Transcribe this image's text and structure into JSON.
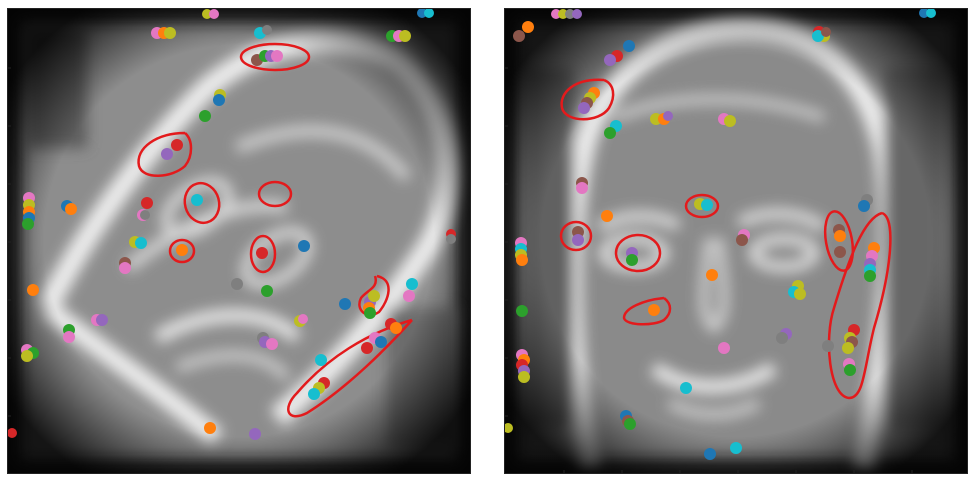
{
  "figure": {
    "panels": [
      {
        "id": "left",
        "subject": "tilted-face-edge-map",
        "point_colors": [
          "#1f77b4",
          "#ff7f0e",
          "#2ca02c",
          "#d62728",
          "#9467bd",
          "#8c564b",
          "#e377c2",
          "#7f7f7f",
          "#bcbd22",
          "#17becf"
        ],
        "annotation_color": "#e31a1c"
      },
      {
        "id": "right",
        "subject": "frontal-face-edge-map",
        "point_colors": [
          "#1f77b4",
          "#ff7f0e",
          "#2ca02c",
          "#d62728",
          "#9467bd",
          "#8c564b",
          "#e377c2",
          "#7f7f7f",
          "#bcbd22",
          "#17becf"
        ],
        "annotation_color": "#e31a1c"
      }
    ]
  }
}
